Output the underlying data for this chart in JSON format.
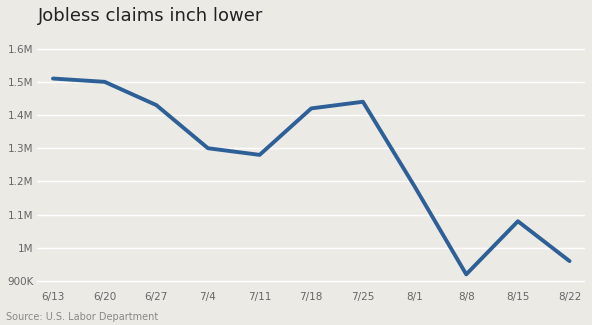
{
  "title": "Jobless claims inch lower",
  "source": "Source: U.S. Labor Department",
  "x_labels": [
    "6/13",
    "6/20",
    "6/27",
    "7/4",
    "7/11",
    "7/18",
    "7/25",
    "8/1",
    "8/8",
    "8/15",
    "8/22"
  ],
  "y_values": [
    1510000,
    1500000,
    1430000,
    1300000,
    1280000,
    1420000,
    1440000,
    1185000,
    920000,
    1080000,
    960000
  ],
  "ylim": [
    880000,
    1650000
  ],
  "yticks": [
    900000,
    1000000,
    1100000,
    1200000,
    1300000,
    1400000,
    1500000,
    1600000
  ],
  "ytick_labels": [
    "900K",
    "1M",
    "1.1M",
    "1.2M",
    "1.3M",
    "1.4M",
    "1.5M",
    "1.6M"
  ],
  "line_color": "#2e6098",
  "line_width": 2.8,
  "background_color": "#eceae5",
  "grid_color": "#ffffff",
  "title_fontsize": 13,
  "source_fontsize": 7,
  "tick_fontsize": 7.5,
  "title_color": "#222222"
}
